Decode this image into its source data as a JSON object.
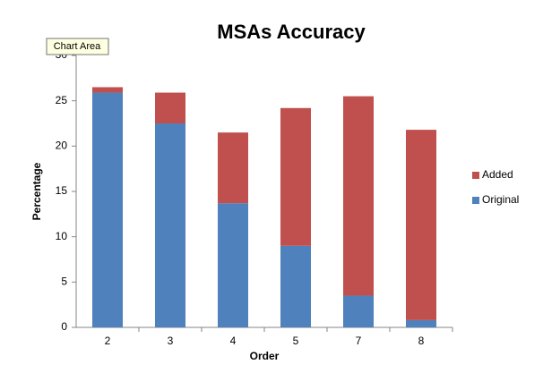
{
  "chart_data": {
    "type": "stacked_bar",
    "title": "MSAs Accuracy",
    "tooltip": "Chart Area",
    "x_label": "Order",
    "y_label": "Percentage",
    "categories": [
      "2",
      "3",
      "4",
      "5",
      "7",
      "8"
    ],
    "series": [
      {
        "name": "Original",
        "color": "#4f81bd",
        "values": [
          25.9,
          22.5,
          13.7,
          9.0,
          3.5,
          0.8
        ]
      },
      {
        "name": "Added",
        "color": "#c0504d",
        "values": [
          0.6,
          3.4,
          7.8,
          15.2,
          22.0,
          21.0
        ]
      }
    ],
    "ylim": [
      0,
      30
    ],
    "yticks": [
      0,
      5,
      10,
      15,
      20,
      25,
      30
    ],
    "grid": false,
    "legend": "right"
  }
}
